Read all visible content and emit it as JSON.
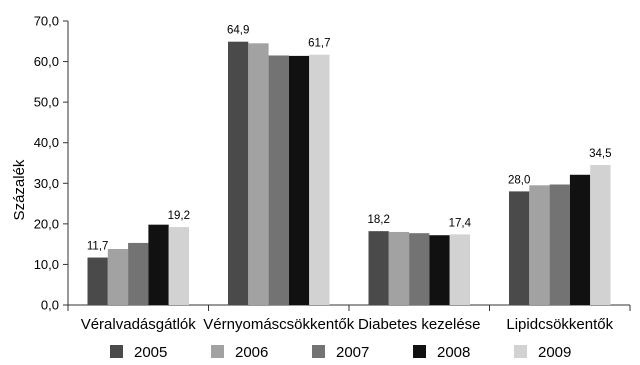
{
  "chart_data": {
    "type": "bar",
    "title": "",
    "xlabel": "",
    "ylabel": "Százalék",
    "ylim": [
      0,
      70
    ],
    "ytick_step": 10,
    "ytick_labels": [
      "0,0",
      "10,0",
      "20,0",
      "30,0",
      "40,0",
      "50,0",
      "60,0",
      "70,0"
    ],
    "categories": [
      "Véralvadásgátlók",
      "Vérnyomáscsökkentők",
      "Diabetes kezelése",
      "Lipidcsökkentők"
    ],
    "series": [
      {
        "name": "2005",
        "color": "#4a4a4a",
        "values": [
          11.7,
          64.9,
          18.2,
          28.0
        ]
      },
      {
        "name": "2006",
        "color": "#a2a2a2",
        "values": [
          13.8,
          64.5,
          18.0,
          29.5
        ]
      },
      {
        "name": "2007",
        "color": "#737373",
        "values": [
          15.3,
          61.5,
          17.7,
          29.7
        ]
      },
      {
        "name": "2008",
        "color": "#111111",
        "values": [
          19.8,
          61.4,
          17.2,
          32.1
        ]
      },
      {
        "name": "2009",
        "color": "#d2d2d2",
        "values": [
          19.2,
          61.7,
          17.4,
          34.5
        ]
      }
    ],
    "data_labels": [
      {
        "category": 0,
        "series": 0,
        "text": "11,7"
      },
      {
        "category": 0,
        "series": 4,
        "text": "19,2"
      },
      {
        "category": 1,
        "series": 0,
        "text": "64,9"
      },
      {
        "category": 1,
        "series": 4,
        "text": "61,7"
      },
      {
        "category": 2,
        "series": 0,
        "text": "18,2"
      },
      {
        "category": 2,
        "series": 4,
        "text": "17,4"
      },
      {
        "category": 3,
        "series": 0,
        "text": "28,0"
      },
      {
        "category": 3,
        "series": 4,
        "text": "34,5"
      }
    ],
    "grid": false,
    "legend_position": "bottom"
  }
}
